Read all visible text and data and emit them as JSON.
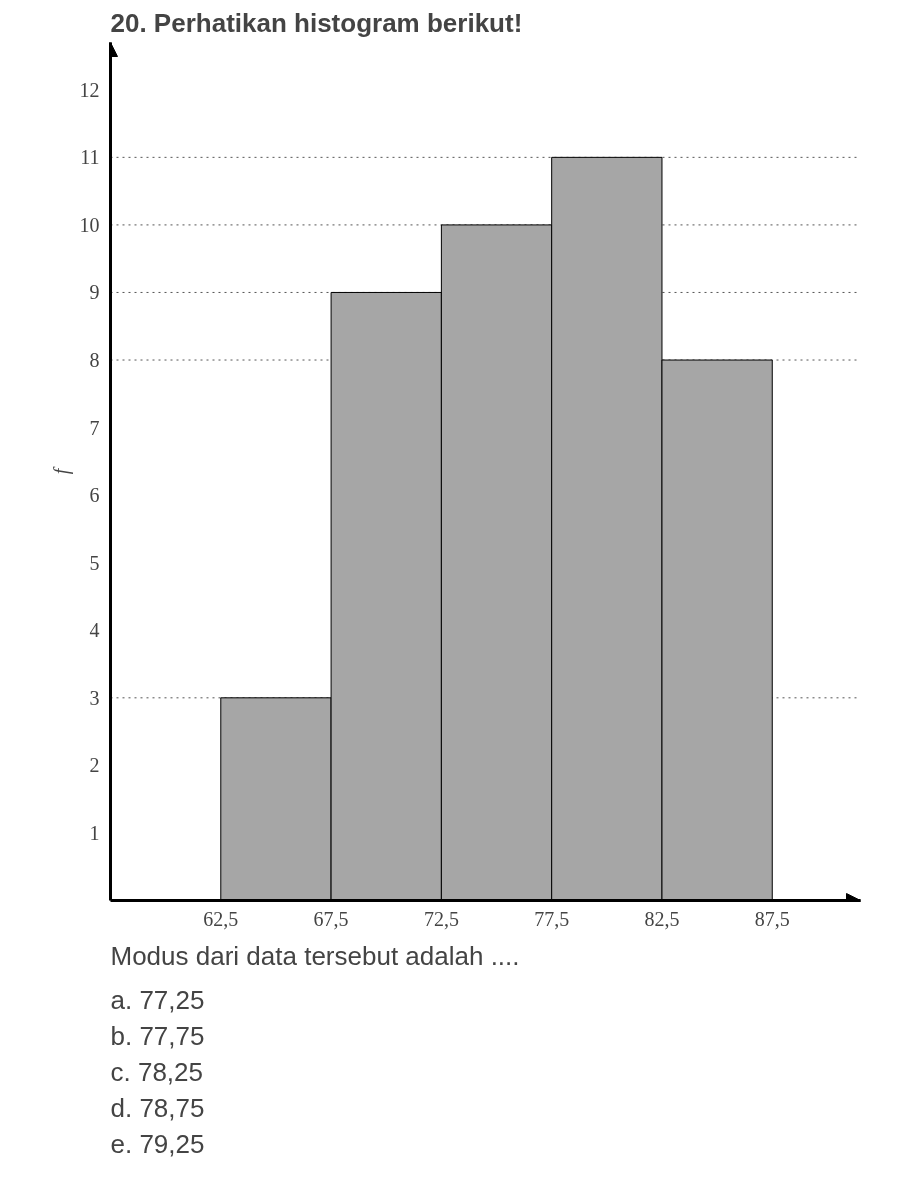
{
  "chart_data": {
    "type": "histogram",
    "title": "20. Perhatikan histogram berikut!",
    "ylabel": "f",
    "bins": [
      62.5,
      67.5,
      72.5,
      77.5,
      82.5,
      87.5
    ],
    "values": [
      3,
      9,
      10,
      11,
      8
    ],
    "color": "#a6a6a6",
    "xlim": [
      57.5,
      91.5
    ],
    "ylim": [
      0,
      12.7
    ],
    "xticks": [
      {
        "value": 62.5,
        "label": "62,5"
      },
      {
        "value": 67.5,
        "label": "67,5"
      },
      {
        "value": 72.5,
        "label": "72,5"
      },
      {
        "value": 77.5,
        "label": "77,5"
      },
      {
        "value": 82.5,
        "label": "82,5"
      },
      {
        "value": 87.5,
        "label": "87,5"
      }
    ],
    "yticks": [
      1,
      2,
      3,
      4,
      5,
      6,
      7,
      8,
      9,
      10,
      11,
      12
    ],
    "ref_lines": [
      {
        "axis": "y",
        "value": 3,
        "line_style": "dotted"
      },
      {
        "axis": "y",
        "value": 8,
        "line_style": "dotted"
      },
      {
        "axis": "y",
        "value": 9,
        "line_style": "dotted"
      },
      {
        "axis": "y",
        "value": 10,
        "line_style": "dotted"
      },
      {
        "axis": "y",
        "value": 11,
        "line_style": "dotted"
      }
    ],
    "annotations": [
      "Modus dari data tersebut adalah ....",
      "a.  77,25",
      "b.  77,75",
      "c.  78,25",
      "d.  78,75",
      "e.  79,25"
    ]
  }
}
